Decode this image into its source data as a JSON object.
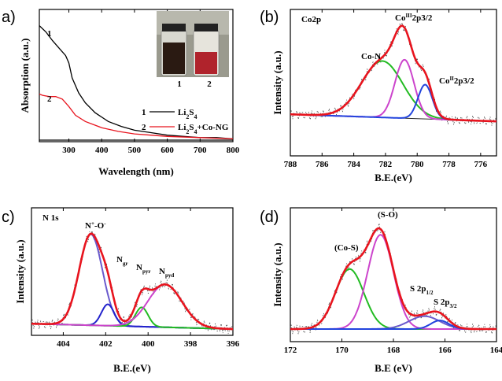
{
  "chart_data": [
    {
      "panel": "a)",
      "type": "line",
      "xlabel": "Wavelength (nm)",
      "ylabel": "Absorption (a.u.)",
      "xlim": [
        210,
        800
      ],
      "ylim": [
        0,
        1
      ],
      "xticks": [
        "300",
        "400",
        "500",
        "600",
        "700",
        "800"
      ],
      "xtick_values": [
        300,
        400,
        500,
        600,
        700,
        800
      ],
      "series": [
        {
          "name": "1",
          "color": "#000000",
          "x": [
            210,
            230,
            250,
            270,
            290,
            300,
            310,
            330,
            350,
            380,
            420,
            460,
            500,
            550,
            600,
            650,
            700,
            750,
            800
          ],
          "y": [
            0.92,
            0.87,
            0.8,
            0.74,
            0.68,
            0.62,
            0.5,
            0.38,
            0.3,
            0.22,
            0.15,
            0.11,
            0.08,
            0.06,
            0.04,
            0.03,
            0.02,
            0.02,
            0.01
          ]
        },
        {
          "name": "2",
          "color": "#e8141e",
          "x": [
            210,
            220,
            240,
            260,
            280,
            300,
            320,
            350,
            400,
            450,
            500,
            550,
            600,
            700,
            800
          ],
          "y": [
            0.37,
            0.36,
            0.35,
            0.35,
            0.33,
            0.27,
            0.2,
            0.15,
            0.1,
            0.07,
            0.05,
            0.04,
            0.03,
            0.02,
            0.01
          ]
        },
        {
          "name": "baseline",
          "color": "#000000",
          "x": [
            210,
            800
          ],
          "y": [
            0.0,
            0.0
          ]
        }
      ],
      "curve_labels": [
        "1",
        "2"
      ],
      "legend": [
        {
          "num": "1",
          "label": "Li2S4",
          "color": "#000000"
        },
        {
          "num": "2",
          "label": "Li2S4+Co-NG",
          "color": "#e8141e"
        }
      ],
      "inset_labels": [
        "1",
        "2"
      ]
    },
    {
      "panel": "(b)",
      "type": "line",
      "title": "Co2p",
      "xlabel": "B.E.(eV)",
      "ylabel": "Intensity (a.u.)",
      "xlim": [
        788,
        775
      ],
      "ylim": [
        0,
        1
      ],
      "xticks": [
        "788",
        "786",
        "784",
        "782",
        "780",
        "778",
        "776"
      ],
      "xtick_values": [
        788,
        786,
        784,
        782,
        780,
        778,
        776
      ],
      "peaks": [
        {
          "name": "Co-N",
          "center": 782.2,
          "height": 0.56,
          "width": 1.3,
          "color": "#22bb22"
        },
        {
          "name": "Co³⁺2p3/2",
          "center": 780.8,
          "height": 0.58,
          "width": 0.6,
          "color": "#cc44cc"
        },
        {
          "name": "Co²⁺2p3/2",
          "center": 779.5,
          "height": 0.34,
          "width": 0.45,
          "color": "#2244dd"
        }
      ],
      "baseline": {
        "left": 0.1,
        "right": 0.03
      },
      "annotations": [
        "Co-N",
        "Co",
        "III",
        "2p3/2",
        "Co",
        "II",
        "2p3/2"
      ]
    },
    {
      "panel": "c)",
      "type": "line",
      "title": "N 1s",
      "xlabel": "B.E.(eV)",
      "ylabel": "Intensity (a.u.)",
      "xlim": [
        405.5,
        396
      ],
      "ylim": [
        0,
        1
      ],
      "xticks": [
        "404",
        "402",
        "400",
        "398",
        "396"
      ],
      "xtick_values": [
        404,
        402,
        400,
        398,
        396
      ],
      "peaks": [
        {
          "name": "N+-O-",
          "center": 402.7,
          "height": 0.85,
          "width": 0.55,
          "color": "#6a5acd"
        },
        {
          "name": "Ngr",
          "center": 401.9,
          "height": 0.2,
          "width": 0.3,
          "color": "#2222cc"
        },
        {
          "name": "Npyr",
          "center": 400.3,
          "height": 0.18,
          "width": 0.3,
          "color": "#22bb22"
        },
        {
          "name": "Npyd",
          "center": 399.2,
          "height": 0.4,
          "width": 0.8,
          "color": "#cc44cc"
        }
      ],
      "baseline": {
        "left": 0.05,
        "right": 0.0
      },
      "annotations": [
        "N",
        "+",
        "-O",
        "-",
        "N",
        "gr",
        "N",
        "pyr",
        "N",
        "pyd"
      ]
    },
    {
      "panel": "(d)",
      "type": "line",
      "xlabel": "B.E (eV)",
      "ylabel": "Intensity (a.u.)",
      "xlim": [
        172,
        164
      ],
      "ylim": [
        0,
        1
      ],
      "xticks": [
        "172",
        "170",
        "168",
        "166",
        "164"
      ],
      "xtick_values": [
        172,
        170,
        168,
        166,
        164
      ],
      "peaks": [
        {
          "name": "(Co-S)",
          "center": 169.7,
          "height": 0.56,
          "width": 0.55,
          "color": "#22bb22"
        },
        {
          "name": "(S-O)",
          "center": 168.5,
          "height": 0.88,
          "width": 0.5,
          "color": "#cc44cc"
        },
        {
          "name": "S 2p1/2",
          "center": 166.8,
          "height": 0.12,
          "width": 0.6,
          "color": "#6a5acd"
        },
        {
          "name": "S 2p3/2",
          "center": 166.2,
          "height": 0.08,
          "width": 0.35,
          "color": "#2244dd"
        }
      ],
      "baseline": {
        "left": 0.0,
        "right": 0.0
      },
      "annotations": [
        "(Co-S)",
        "(S-O)",
        "S 2p",
        "1/2",
        "S 2p",
        "3/2"
      ]
    }
  ]
}
